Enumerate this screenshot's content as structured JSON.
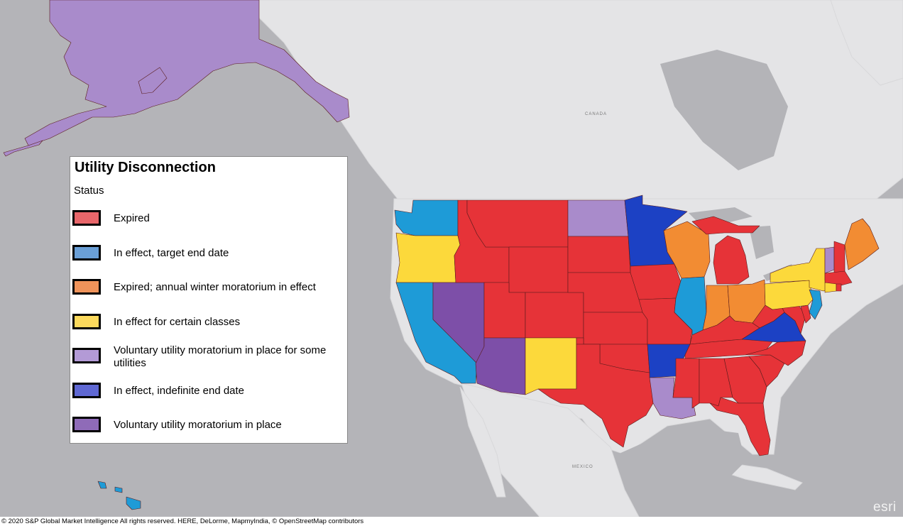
{
  "legend": {
    "title": "Utility Disconnection",
    "subtitle": "Status",
    "items": [
      {
        "label": "Expired",
        "color": "#e8666a"
      },
      {
        "label": "In effect, target end date",
        "color": "#6a9fd6"
      },
      {
        "label": "Expired; annual winter moratorium in effect",
        "color": "#ef935a"
      },
      {
        "label": "In effect for certain classes",
        "color": "#fbd95c"
      },
      {
        "label": "Voluntary utility moratorium in place for some utilities",
        "color": "#b39ad6"
      },
      {
        "label": "In effect, indefinite end date",
        "color": "#5f68d3"
      },
      {
        "label": "Voluntary utility moratorium in place",
        "color": "#8f6bb8"
      }
    ]
  },
  "map_colors": {
    "expired": "#e63338",
    "target_end_date": "#1e9bd7",
    "winter_moratorium": "#f28c33",
    "certain_classes": "#fcd93b",
    "voluntary_some": "#a98bcb",
    "indefinite": "#1c41c4",
    "voluntary": "#7d4fa8"
  },
  "states": [
    {
      "name": "Alaska",
      "status": "voluntary_some"
    },
    {
      "name": "Hawaii",
      "status": "target_end_date"
    },
    {
      "name": "Washington",
      "status": "target_end_date"
    },
    {
      "name": "Oregon",
      "status": "certain_classes"
    },
    {
      "name": "California",
      "status": "target_end_date"
    },
    {
      "name": "Nevada",
      "status": "voluntary"
    },
    {
      "name": "Arizona",
      "status": "voluntary"
    },
    {
      "name": "New Mexico",
      "status": "certain_classes"
    },
    {
      "name": "Idaho",
      "status": "expired"
    },
    {
      "name": "Montana",
      "status": "expired"
    },
    {
      "name": "Wyoming",
      "status": "expired"
    },
    {
      "name": "Utah",
      "status": "expired"
    },
    {
      "name": "Colorado",
      "status": "expired"
    },
    {
      "name": "North Dakota",
      "status": "voluntary_some"
    },
    {
      "name": "South Dakota",
      "status": "expired"
    },
    {
      "name": "Nebraska",
      "status": "expired"
    },
    {
      "name": "Kansas",
      "status": "expired"
    },
    {
      "name": "Oklahoma",
      "status": "expired"
    },
    {
      "name": "Texas",
      "status": "expired"
    },
    {
      "name": "Minnesota",
      "status": "indefinite"
    },
    {
      "name": "Iowa",
      "status": "expired"
    },
    {
      "name": "Missouri",
      "status": "expired"
    },
    {
      "name": "Arkansas",
      "status": "indefinite"
    },
    {
      "name": "Louisiana",
      "status": "voluntary_some"
    },
    {
      "name": "Wisconsin",
      "status": "winter_moratorium"
    },
    {
      "name": "Illinois",
      "status": "target_end_date"
    },
    {
      "name": "Michigan",
      "status": "expired"
    },
    {
      "name": "Indiana",
      "status": "winter_moratorium"
    },
    {
      "name": "Ohio",
      "status": "winter_moratorium"
    },
    {
      "name": "Kentucky",
      "status": "expired"
    },
    {
      "name": "Tennessee",
      "status": "expired"
    },
    {
      "name": "Mississippi",
      "status": "expired"
    },
    {
      "name": "Alabama",
      "status": "expired"
    },
    {
      "name": "Georgia",
      "status": "expired"
    },
    {
      "name": "Florida",
      "status": "expired"
    },
    {
      "name": "South Carolina",
      "status": "expired"
    },
    {
      "name": "North Carolina",
      "status": "expired"
    },
    {
      "name": "Virginia",
      "status": "indefinite"
    },
    {
      "name": "West Virginia",
      "status": "expired"
    },
    {
      "name": "Pennsylvania",
      "status": "certain_classes"
    },
    {
      "name": "New York",
      "status": "certain_classes"
    },
    {
      "name": "New Jersey",
      "status": "target_end_date"
    },
    {
      "name": "Delaware",
      "status": "expired"
    },
    {
      "name": "Maryland",
      "status": "expired"
    },
    {
      "name": "Vermont",
      "status": "voluntary_some"
    },
    {
      "name": "New Hampshire",
      "status": "expired"
    },
    {
      "name": "Maine",
      "status": "winter_moratorium"
    },
    {
      "name": "Massachusetts",
      "status": "expired"
    },
    {
      "name": "Rhode Island",
      "status": "expired"
    },
    {
      "name": "Connecticut",
      "status": "certain_classes"
    }
  ],
  "basemap": {
    "place_labels": [
      "CANADA",
      "MEXICO"
    ],
    "credits": "© 2020 S&P Global Market Intelligence All rights reserved. HERE, DeLorme, MapmyIndia, © OpenStreetMap contributors",
    "logo": "esri"
  }
}
